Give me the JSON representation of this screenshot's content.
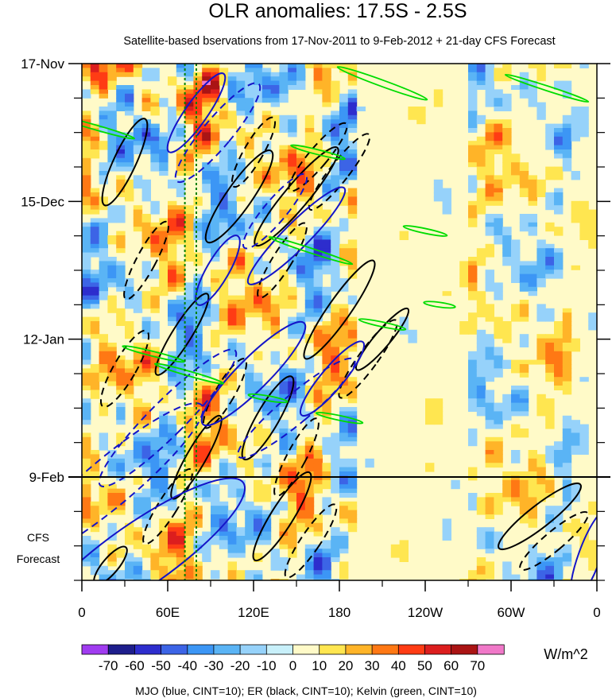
{
  "chart_data": {
    "type": "heatmap",
    "title": "OLR anomalies: 17.5S - 2.5S",
    "subtitle": "Satellite-based bservations from 17-Nov-2011 to 9-Feb-2012 + 21-day CFS Forecast",
    "x_ticks": [
      "0",
      "60E",
      "120E",
      "180",
      "120W",
      "60W",
      "0"
    ],
    "x_tick_values": [
      0,
      60,
      120,
      180,
      240,
      300,
      360
    ],
    "xlim": [
      0,
      360
    ],
    "y_ticks": [
      "17-Nov",
      "15-Dec",
      "12-Jan",
      "9-Feb"
    ],
    "y_tick_days": [
      0,
      28,
      56,
      84
    ],
    "ylim_days": [
      0,
      105
    ],
    "forecast_start_day": 84,
    "forecast_label_line1": "CFS",
    "forecast_label_line2": "Forecast",
    "colorbar": {
      "unit": "W/m^2",
      "levels": [
        -70,
        -60,
        -50,
        -40,
        -30,
        -20,
        -10,
        0,
        10,
        20,
        30,
        40,
        50,
        60,
        70
      ],
      "labels": [
        "-70",
        "-60",
        "-50",
        "-40",
        "-30",
        "-20",
        "-10",
        "0",
        "10",
        "20",
        "30",
        "40",
        "50",
        "60",
        "70"
      ],
      "colors": [
        "#a03cf0",
        "#1e1e8c",
        "#2d2dcd",
        "#3c64e6",
        "#3c96f5",
        "#5ab4f5",
        "#96d2fa",
        "#c8f0fa",
        "#fffac8",
        "#ffe650",
        "#ffb428",
        "#ff7814",
        "#ff3c14",
        "#dc1e1e",
        "#aa1414",
        "#f078c8"
      ]
    },
    "overlays": {
      "mjo": {
        "color": "#1414c8",
        "cint": 10
      },
      "er": {
        "color": "#000000",
        "cint": 10
      },
      "kelvin": {
        "color": "#00dc00",
        "cint": 10
      }
    },
    "reference_lines": [
      {
        "lon": 72,
        "style": "dotted",
        "color": "#008000"
      },
      {
        "lon": 80,
        "style": "dotted",
        "color": "#008000"
      }
    ],
    "footnote": "MJO (blue, CINT=10); ER (black, CINT=10); Kelvin (green, CINT=10)"
  }
}
